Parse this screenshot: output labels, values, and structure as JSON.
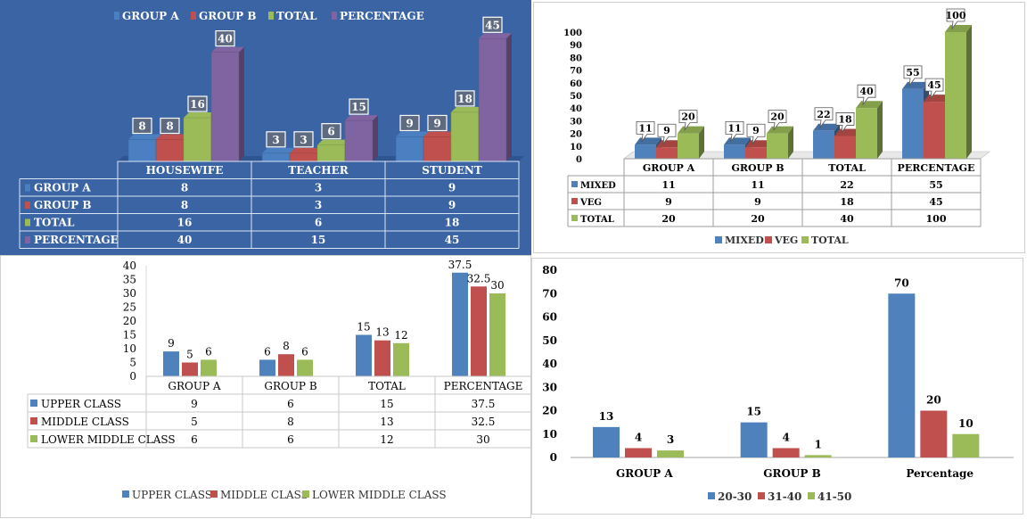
{
  "charts": [
    {
      "type": "bar",
      "categories": [
        "HOUSEWIFE",
        "TEACHER",
        "STUDENT"
      ],
      "series": [
        {
          "name": "GROUP A",
          "values": [
            8,
            3,
            9
          ],
          "color": "#4a7fc1"
        },
        {
          "name": "GROUP B",
          "values": [
            8,
            3,
            9
          ],
          "color": "#c0504d"
        },
        {
          "name": "TOTAL",
          "values": [
            16,
            6,
            18
          ],
          "color": "#9bbb59"
        },
        {
          "name": "PERCENTAGE",
          "values": [
            40,
            15,
            45
          ],
          "color": "#8064a2"
        }
      ],
      "ylim": [
        0,
        50
      ],
      "legend": "top",
      "data_table": true,
      "grid": false,
      "background": "#3a64a3"
    },
    {
      "type": "bar",
      "categories": [
        "GROUP A",
        "GROUP B",
        "TOTAL",
        "PERCENTAGE"
      ],
      "series": [
        {
          "name": "MIXED",
          "values": [
            11,
            11,
            22,
            55
          ],
          "color": "#4f81bd"
        },
        {
          "name": "VEG",
          "values": [
            9,
            9,
            18,
            45
          ],
          "color": "#c0504d"
        },
        {
          "name": "TOTAL",
          "values": [
            20,
            20,
            40,
            100
          ],
          "color": "#9bbb59"
        }
      ],
      "yticks": [
        "0",
        "10",
        "20",
        "30",
        "40",
        "50",
        "60",
        "70",
        "80",
        "90",
        "100"
      ],
      "ylim": [
        0,
        100
      ],
      "legend": "bottom",
      "data_table": true,
      "grid": false
    },
    {
      "type": "bar",
      "categories": [
        "GROUP A",
        "GROUP B",
        "TOTAL",
        "PERCENTAGE"
      ],
      "series": [
        {
          "name": "UPPER CLASS",
          "values": [
            9,
            6,
            15,
            37.5
          ],
          "color": "#4f81bd"
        },
        {
          "name": "MIDDLE CLASS",
          "values": [
            5,
            8,
            13,
            32.5
          ],
          "color": "#c0504d"
        },
        {
          "name": "LOWER MIDDLE CLASS",
          "values": [
            6,
            6,
            12,
            30
          ],
          "color": "#9bbb59"
        }
      ],
      "yticks": [
        "0",
        "5",
        "10",
        "15",
        "20",
        "25",
        "30",
        "35",
        "40"
      ],
      "ylim": [
        0,
        40
      ],
      "legend": "bottom",
      "data_table": true,
      "grid": false
    },
    {
      "type": "bar",
      "categories": [
        "GROUP A",
        "GROUP B",
        "Percentage"
      ],
      "series": [
        {
          "name": "20-30",
          "values": [
            13,
            15,
            70
          ],
          "color": "#4f81bd"
        },
        {
          "name": "31-40",
          "values": [
            4,
            4,
            20
          ],
          "color": "#c0504d"
        },
        {
          "name": "41-50",
          "values": [
            3,
            1,
            10
          ],
          "color": "#9bbb59"
        }
      ],
      "yticks": [
        "0",
        "10",
        "20",
        "30",
        "40",
        "50",
        "60",
        "70",
        "80"
      ],
      "ylim": [
        0,
        80
      ],
      "legend": "bottom",
      "data_table": false,
      "grid": false
    }
  ]
}
